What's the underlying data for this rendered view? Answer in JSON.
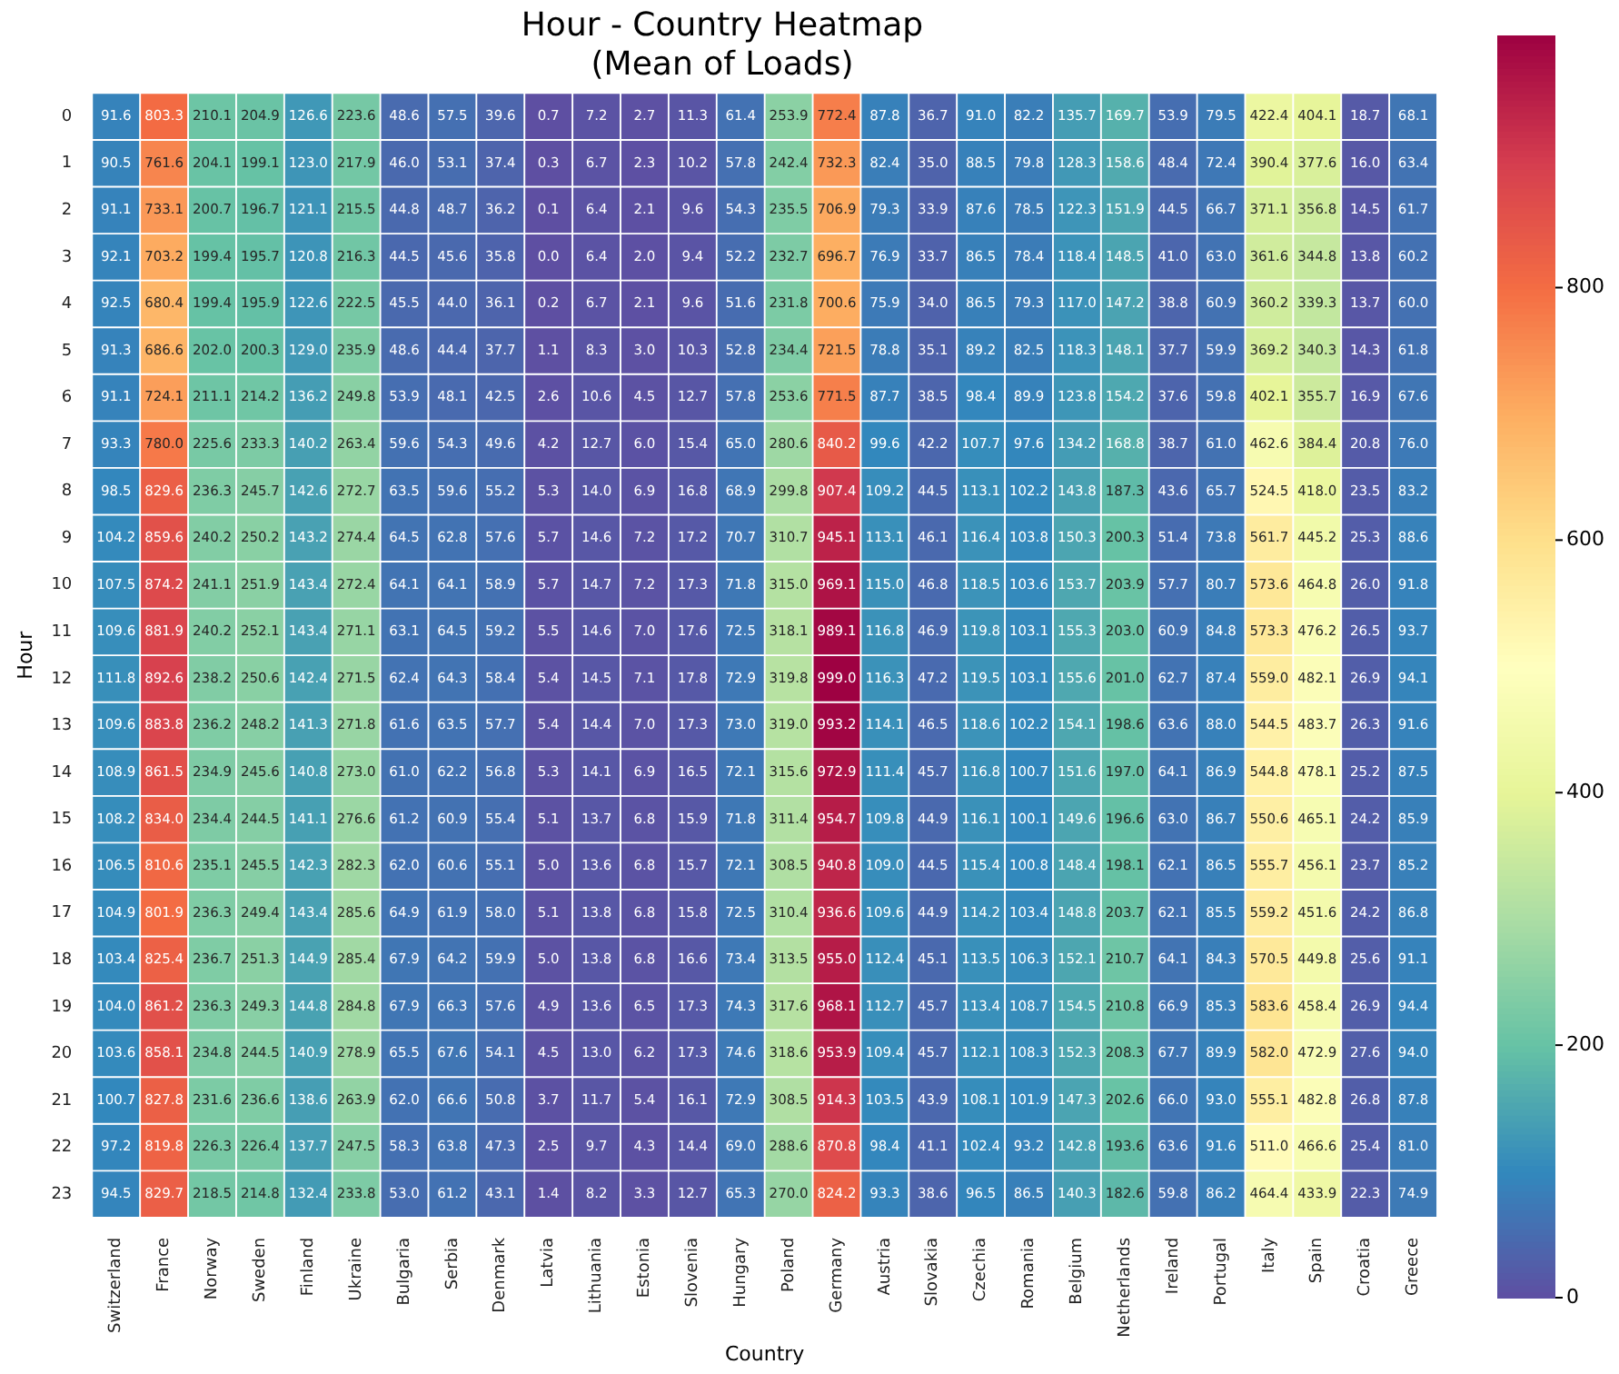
{
  "chart_data": {
    "type": "heatmap",
    "title": "Hour - Country Heatmap",
    "subtitle": "(Mean of Loads)",
    "xlabel": "Country",
    "ylabel": "Hour",
    "categories": [
      "Switzerland",
      "France",
      "Norway",
      "Sweden",
      "Finland",
      "Ukraine",
      "Bulgaria",
      "Serbia",
      "Denmark",
      "Latvia",
      "Lithuania",
      "Estonia",
      "Slovenia",
      "Hungary",
      "Poland",
      "Germany",
      "Austria",
      "Slovakia",
      "Czechia",
      "Romania",
      "Belgium",
      "Netherlands",
      "Ireland",
      "Portugal",
      "Italy",
      "Spain",
      "Croatia",
      "Greece"
    ],
    "y_categories": [
      "0",
      "1",
      "2",
      "3",
      "4",
      "5",
      "6",
      "7",
      "8",
      "9",
      "10",
      "11",
      "12",
      "13",
      "14",
      "15",
      "16",
      "17",
      "18",
      "19",
      "20",
      "21",
      "22",
      "23"
    ],
    "cells": [
      [
        91.6,
        803.3,
        210.1,
        204.9,
        126.6,
        223.6,
        48.6,
        57.5,
        39.6,
        0.7,
        7.2,
        2.7,
        11.3,
        61.4,
        253.9,
        772.4,
        87.8,
        36.7,
        91.0,
        82.2,
        135.7,
        169.7,
        53.9,
        79.5,
        422.4,
        404.1,
        18.7,
        68.1
      ],
      [
        90.5,
        761.6,
        204.1,
        199.1,
        123.0,
        217.9,
        46.0,
        53.1,
        37.4,
        0.3,
        6.7,
        2.3,
        10.2,
        57.8,
        242.4,
        732.3,
        82.4,
        35.0,
        88.5,
        79.8,
        128.3,
        158.6,
        48.4,
        72.4,
        390.4,
        377.6,
        16.0,
        63.4
      ],
      [
        91.1,
        733.1,
        200.7,
        196.7,
        121.1,
        215.5,
        44.8,
        48.7,
        36.2,
        0.1,
        6.4,
        2.1,
        9.6,
        54.3,
        235.5,
        706.9,
        79.3,
        33.9,
        87.6,
        78.5,
        122.3,
        151.9,
        44.5,
        66.7,
        371.1,
        356.8,
        14.5,
        61.7
      ],
      [
        92.1,
        703.2,
        199.4,
        195.7,
        120.8,
        216.3,
        44.5,
        45.6,
        35.8,
        0.0,
        6.4,
        2.0,
        9.4,
        52.2,
        232.7,
        696.7,
        76.9,
        33.7,
        86.5,
        78.4,
        118.4,
        148.5,
        41.0,
        63.0,
        361.6,
        344.8,
        13.8,
        60.2
      ],
      [
        92.5,
        680.4,
        199.4,
        195.9,
        122.6,
        222.5,
        45.5,
        44.0,
        36.1,
        0.2,
        6.7,
        2.1,
        9.6,
        51.6,
        231.8,
        700.6,
        75.9,
        34.0,
        86.5,
        79.3,
        117.0,
        147.2,
        38.8,
        60.9,
        360.2,
        339.3,
        13.7,
        60.0
      ],
      [
        91.3,
        686.6,
        202.0,
        200.3,
        129.0,
        235.9,
        48.6,
        44.4,
        37.7,
        1.1,
        8.3,
        3.0,
        10.3,
        52.8,
        234.4,
        721.5,
        78.8,
        35.1,
        89.2,
        82.5,
        118.3,
        148.1,
        37.7,
        59.9,
        369.2,
        340.3,
        14.3,
        61.8
      ],
      [
        91.1,
        724.1,
        211.1,
        214.2,
        136.2,
        249.8,
        53.9,
        48.1,
        42.5,
        2.6,
        10.6,
        4.5,
        12.7,
        57.8,
        253.6,
        771.5,
        87.7,
        38.5,
        98.4,
        89.9,
        123.8,
        154.2,
        37.6,
        59.8,
        402.1,
        355.7,
        16.9,
        67.6
      ],
      [
        93.3,
        780.0,
        225.6,
        233.3,
        140.2,
        263.4,
        59.6,
        54.3,
        49.6,
        4.2,
        12.7,
        6.0,
        15.4,
        65.0,
        280.6,
        840.2,
        99.6,
        42.2,
        107.7,
        97.6,
        134.2,
        168.8,
        38.7,
        61.0,
        462.6,
        384.4,
        20.8,
        76.0
      ],
      [
        98.5,
        829.6,
        236.3,
        245.7,
        142.6,
        272.7,
        63.5,
        59.6,
        55.2,
        5.3,
        14.0,
        6.9,
        16.8,
        68.9,
        299.8,
        907.4,
        109.2,
        44.5,
        113.1,
        102.2,
        143.8,
        187.3,
        43.6,
        65.7,
        524.5,
        418.0,
        23.5,
        83.2
      ],
      [
        104.2,
        859.6,
        240.2,
        250.2,
        143.2,
        274.4,
        64.5,
        62.8,
        57.6,
        5.7,
        14.6,
        7.2,
        17.2,
        70.7,
        310.7,
        945.1,
        113.1,
        46.1,
        116.4,
        103.8,
        150.3,
        200.3,
        51.4,
        73.8,
        561.7,
        445.2,
        25.3,
        88.6
      ],
      [
        107.5,
        874.2,
        241.1,
        251.9,
        143.4,
        272.4,
        64.1,
        64.1,
        58.9,
        5.7,
        14.7,
        7.2,
        17.3,
        71.8,
        315.0,
        969.1,
        115.0,
        46.8,
        118.5,
        103.6,
        153.7,
        203.9,
        57.7,
        80.7,
        573.6,
        464.8,
        26.0,
        91.8
      ],
      [
        109.6,
        881.9,
        240.2,
        252.1,
        143.4,
        271.1,
        63.1,
        64.5,
        59.2,
        5.5,
        14.6,
        7.0,
        17.6,
        72.5,
        318.1,
        989.1,
        116.8,
        46.9,
        119.8,
        103.1,
        155.3,
        203.0,
        60.9,
        84.8,
        573.3,
        476.2,
        26.5,
        93.7
      ],
      [
        111.8,
        892.6,
        238.2,
        250.6,
        142.4,
        271.5,
        62.4,
        64.3,
        58.4,
        5.4,
        14.5,
        7.1,
        17.8,
        72.9,
        319.8,
        999.0,
        116.3,
        47.2,
        119.5,
        103.1,
        155.6,
        201.0,
        62.7,
        87.4,
        559.0,
        482.1,
        26.9,
        94.1
      ],
      [
        109.6,
        883.8,
        236.2,
        248.2,
        141.3,
        271.8,
        61.6,
        63.5,
        57.7,
        5.4,
        14.4,
        7.0,
        17.3,
        73.0,
        319.0,
        993.2,
        114.1,
        46.5,
        118.6,
        102.2,
        154.1,
        198.6,
        63.6,
        88.0,
        544.5,
        483.7,
        26.3,
        91.6
      ],
      [
        108.9,
        861.5,
        234.9,
        245.6,
        140.8,
        273.0,
        61.0,
        62.2,
        56.8,
        5.3,
        14.1,
        6.9,
        16.5,
        72.1,
        315.6,
        972.9,
        111.4,
        45.7,
        116.8,
        100.7,
        151.6,
        197.0,
        64.1,
        86.9,
        544.8,
        478.1,
        25.2,
        87.5
      ],
      [
        108.2,
        834.0,
        234.4,
        244.5,
        141.1,
        276.6,
        61.2,
        60.9,
        55.4,
        5.1,
        13.7,
        6.8,
        15.9,
        71.8,
        311.4,
        954.7,
        109.8,
        44.9,
        116.1,
        100.1,
        149.6,
        196.6,
        63.0,
        86.7,
        550.6,
        465.1,
        24.2,
        85.9
      ],
      [
        106.5,
        810.6,
        235.1,
        245.5,
        142.3,
        282.3,
        62.0,
        60.6,
        55.1,
        5.0,
        13.6,
        6.8,
        15.7,
        72.1,
        308.5,
        940.8,
        109.0,
        44.5,
        115.4,
        100.8,
        148.4,
        198.1,
        62.1,
        86.5,
        555.7,
        456.1,
        23.7,
        85.2
      ],
      [
        104.9,
        801.9,
        236.3,
        249.4,
        143.4,
        285.6,
        64.9,
        61.9,
        58.0,
        5.1,
        13.8,
        6.8,
        15.8,
        72.5,
        310.4,
        936.6,
        109.6,
        44.9,
        114.2,
        103.4,
        148.8,
        203.7,
        62.1,
        85.5,
        559.2,
        451.6,
        24.2,
        86.8
      ],
      [
        103.4,
        825.4,
        236.7,
        251.3,
        144.9,
        285.4,
        67.9,
        64.2,
        59.9,
        5.0,
        13.8,
        6.8,
        16.6,
        73.4,
        313.5,
        955.0,
        112.4,
        45.1,
        113.5,
        106.3,
        152.1,
        210.7,
        64.1,
        84.3,
        570.5,
        449.8,
        25.6,
        91.1
      ],
      [
        104.0,
        861.2,
        236.3,
        249.3,
        144.8,
        284.8,
        67.9,
        66.3,
        57.6,
        4.9,
        13.6,
        6.5,
        17.3,
        74.3,
        317.6,
        968.1,
        112.7,
        45.7,
        113.4,
        108.7,
        154.5,
        210.8,
        66.9,
        85.3,
        583.6,
        458.4,
        26.9,
        94.4
      ],
      [
        103.6,
        858.1,
        234.8,
        244.5,
        140.9,
        278.9,
        65.5,
        67.6,
        54.1,
        4.5,
        13.0,
        6.2,
        17.3,
        74.6,
        318.6,
        953.9,
        109.4,
        45.7,
        112.1,
        108.3,
        152.3,
        208.3,
        67.7,
        89.9,
        582.0,
        472.9,
        27.6,
        94.0
      ],
      [
        100.7,
        827.8,
        231.6,
        236.6,
        138.6,
        263.9,
        62.0,
        66.6,
        50.8,
        3.7,
        11.7,
        5.4,
        16.1,
        72.9,
        308.5,
        914.3,
        103.5,
        43.9,
        108.1,
        101.9,
        147.3,
        202.6,
        66.0,
        93.0,
        555.1,
        482.8,
        26.8,
        87.8
      ],
      [
        97.2,
        819.8,
        226.3,
        226.4,
        137.7,
        247.5,
        58.3,
        63.8,
        47.3,
        2.5,
        9.7,
        4.3,
        14.4,
        69.0,
        288.6,
        870.8,
        98.4,
        41.1,
        102.4,
        93.2,
        142.8,
        193.6,
        63.6,
        91.6,
        511.0,
        466.6,
        25.4,
        81.0
      ],
      [
        94.5,
        829.7,
        218.5,
        214.8,
        132.4,
        233.8,
        53.0,
        61.2,
        43.1,
        1.4,
        8.2,
        3.3,
        12.7,
        65.3,
        270.0,
        824.2,
        93.3,
        38.6,
        96.5,
        86.5,
        140.3,
        182.6,
        59.8,
        86.2,
        464.4,
        433.9,
        22.3,
        74.9
      ]
    ],
    "cell_labels": [
      [
        "91.6",
        "803.3",
        "210.1",
        "204.9",
        "126.6",
        "223.6",
        "48.6",
        "57.5",
        "39.6",
        "0.7",
        "7.2",
        "2.7",
        "11.3",
        "61.4",
        "253.9",
        "772.4",
        "87.8",
        "36.7",
        "91.0",
        "82.2",
        "135.7",
        "169.7",
        "53.9",
        "79.5",
        "422.4",
        "404.1",
        "18.7",
        "68.1"
      ],
      [
        "90.5",
        "761.6",
        "204.1",
        "199.1",
        "123.0",
        "217.9",
        "46.0",
        "53.1",
        "37.4",
        "0.3",
        "6.7",
        "2.3",
        "10.2",
        "57.8",
        "242.4",
        "732.3",
        "82.4",
        "35.0",
        "88.5",
        "79.8",
        "128.3",
        "158.6",
        "48.4",
        "72.4",
        "390.4",
        "377.6",
        "16.0",
        "63.4"
      ],
      [
        "91.1",
        "733.1",
        "200.7",
        "196.7",
        "121.1",
        "215.5",
        "44.8",
        "48.7",
        "36.2",
        "0.1",
        "6.4",
        "2.1",
        "9.6",
        "54.3",
        "235.5",
        "706.9",
        "79.3",
        "33.9",
        "87.6",
        "78.5",
        "122.3",
        "151.9",
        "44.5",
        "66.7",
        "371.1",
        "356.8",
        "14.5",
        "61.7"
      ],
      [
        "92.1",
        "703.2",
        "199.4",
        "195.7",
        "120.8",
        "216.3",
        "44.5",
        "45.6",
        "35.8",
        "0.0",
        "6.4",
        "2.0",
        "9.4",
        "52.2",
        "232.7",
        "696.7",
        "76.9",
        "33.7",
        "86.5",
        "78.4",
        "118.4",
        "148.5",
        "41.0",
        "63.0",
        "361.6",
        "344.8",
        "13.8",
        "60.2"
      ],
      [
        "92.5",
        "680.4",
        "199.4",
        "195.9",
        "122.6",
        "222.5",
        "45.5",
        "44.0",
        "36.1",
        "0.2",
        "6.7",
        "2.1",
        "9.6",
        "51.6",
        "231.8",
        "700.6",
        "75.9",
        "34.0",
        "86.5",
        "79.3",
        "117.0",
        "147.2",
        "38.8",
        "60.9",
        "360.2",
        "339.3",
        "13.7",
        "60.0"
      ],
      [
        "91.3",
        "686.6",
        "202.0",
        "200.3",
        "129.0",
        "235.9",
        "48.6",
        "44.4",
        "37.7",
        "1.1",
        "8.3",
        "3.0",
        "10.3",
        "52.8",
        "234.4",
        "721.5",
        "78.8",
        "35.1",
        "89.2",
        "82.5",
        "118.3",
        "148.1",
        "37.7",
        "59.9",
        "369.2",
        "340.3",
        "14.3",
        "61.8"
      ],
      [
        "91.1",
        "724.1",
        "211.1",
        "214.2",
        "136.2",
        "249.8",
        "53.9",
        "48.1",
        "42.5",
        "2.6",
        "10.6",
        "4.5",
        "12.7",
        "57.8",
        "253.6",
        "771.5",
        "87.7",
        "38.5",
        "98.4",
        "89.9",
        "123.8",
        "154.2",
        "37.6",
        "59.8",
        "402.1",
        "355.7",
        "16.9",
        "67.6"
      ],
      [
        "93.3",
        "780.0",
        "225.6",
        "233.3",
        "140.2",
        "263.4",
        "59.6",
        "54.3",
        "49.6",
        "4.2",
        "12.7",
        "6.0",
        "15.4",
        "65.0",
        "280.6",
        "840.2",
        "99.6",
        "42.2",
        "107.7",
        "97.6",
        "134.2",
        "168.8",
        "38.7",
        "61.0",
        "462.6",
        "384.4",
        "20.8",
        "76.0"
      ],
      [
        "98.5",
        "829.6",
        "236.3",
        "245.7",
        "142.6",
        "272.7",
        "63.5",
        "59.6",
        "55.2",
        "5.3",
        "14.0",
        "6.9",
        "16.8",
        "68.9",
        "299.8",
        "907.4",
        "109.2",
        "44.5",
        "113.1",
        "102.2",
        "143.8",
        "187.3",
        "43.6",
        "65.7",
        "524.5",
        "418.0",
        "23.5",
        "83.2"
      ],
      [
        "104.2",
        "859.6",
        "240.2",
        "250.2",
        "143.2",
        "274.4",
        "64.5",
        "62.8",
        "57.6",
        "5.7",
        "14.6",
        "7.2",
        "17.2",
        "70.7",
        "310.7",
        "945.1",
        "113.1",
        "46.1",
        "116.4",
        "103.8",
        "150.3",
        "200.3",
        "51.4",
        "73.8",
        "561.7",
        "445.2",
        "25.3",
        "88.6"
      ],
      [
        "107.5",
        "874.2",
        "241.1",
        "251.9",
        "143.4",
        "272.4",
        "64.1",
        "64.1",
        "58.9",
        "5.7",
        "14.7",
        "7.2",
        "17.3",
        "71.8",
        "315.0",
        "969.1",
        "115.0",
        "46.8",
        "118.5",
        "103.6",
        "153.7",
        "203.9",
        "57.7",
        "80.7",
        "573.6",
        "464.8",
        "26.0",
        "91.8"
      ],
      [
        "109.6",
        "881.9",
        "240.2",
        "252.1",
        "143.4",
        "271.1",
        "63.1",
        "64.5",
        "59.2",
        "5.5",
        "14.6",
        "7.0",
        "17.6",
        "72.5",
        "318.1",
        "989.1",
        "116.8",
        "46.9",
        "119.8",
        "103.1",
        "155.3",
        "203.0",
        "60.9",
        "84.8",
        "573.3",
        "476.2",
        "26.5",
        "93.7"
      ],
      [
        "111.8",
        "892.6",
        "238.2",
        "250.6",
        "142.4",
        "271.5",
        "62.4",
        "64.3",
        "58.4",
        "5.4",
        "14.5",
        "7.1",
        "17.8",
        "72.9",
        "319.8",
        "999.0",
        "116.3",
        "47.2",
        "119.5",
        "103.1",
        "155.6",
        "201.0",
        "62.7",
        "87.4",
        "559.0",
        "482.1",
        "26.9",
        "94.1"
      ],
      [
        "109.6",
        "883.8",
        "236.2",
        "248.2",
        "141.3",
        "271.8",
        "61.6",
        "63.5",
        "57.7",
        "5.4",
        "14.4",
        "7.0",
        "17.3",
        "73.0",
        "319.0",
        "993.2",
        "114.1",
        "46.5",
        "118.6",
        "102.2",
        "154.1",
        "198.6",
        "63.6",
        "88.0",
        "544.5",
        "483.7",
        "26.3",
        "91.6"
      ],
      [
        "108.9",
        "861.5",
        "234.9",
        "245.6",
        "140.8",
        "273.0",
        "61.0",
        "62.2",
        "56.8",
        "5.3",
        "14.1",
        "6.9",
        "16.5",
        "72.1",
        "315.6",
        "972.9",
        "111.4",
        "45.7",
        "116.8",
        "100.7",
        "151.6",
        "197.0",
        "64.1",
        "86.9",
        "544.8",
        "478.1",
        "25.2",
        "87.5"
      ],
      [
        "108.2",
        "834.0",
        "234.4",
        "244.5",
        "141.1",
        "276.6",
        "61.2",
        "60.9",
        "55.4",
        "5.1",
        "13.7",
        "6.8",
        "15.9",
        "71.8",
        "311.4",
        "954.7",
        "109.8",
        "44.9",
        "116.1",
        "100.1",
        "149.6",
        "196.6",
        "63.0",
        "86.7",
        "550.6",
        "465.1",
        "24.2",
        "85.9"
      ],
      [
        "106.5",
        "810.6",
        "235.1",
        "245.5",
        "142.3",
        "282.3",
        "62.0",
        "60.6",
        "55.1",
        "5.0",
        "13.6",
        "6.8",
        "15.7",
        "72.1",
        "308.5",
        "940.8",
        "109.0",
        "44.5",
        "115.4",
        "100.8",
        "148.4",
        "198.1",
        "62.1",
        "86.5",
        "555.7",
        "456.1",
        "23.7",
        "85.2"
      ],
      [
        "104.9",
        "801.9",
        "236.3",
        "249.4",
        "143.4",
        "285.6",
        "64.9",
        "61.9",
        "58.0",
        "5.1",
        "13.8",
        "6.8",
        "15.8",
        "72.5",
        "310.4",
        "936.6",
        "109.6",
        "44.9",
        "114.2",
        "103.4",
        "148.8",
        "203.7",
        "62.1",
        "85.5",
        "559.2",
        "451.6",
        "24.2",
        "86.8"
      ],
      [
        "103.4",
        "825.4",
        "236.7",
        "251.3",
        "144.9",
        "285.4",
        "67.9",
        "64.2",
        "59.9",
        "5.0",
        "13.8",
        "6.8",
        "16.6",
        "73.4",
        "313.5",
        "955.0",
        "112.4",
        "45.1",
        "113.5",
        "106.3",
        "152.1",
        "210.7",
        "64.1",
        "84.3",
        "570.5",
        "449.8",
        "25.6",
        "91.1"
      ],
      [
        "104.0",
        "861.2",
        "236.3",
        "249.3",
        "144.8",
        "284.8",
        "67.9",
        "66.3",
        "57.6",
        "4.9",
        "13.6",
        "6.5",
        "17.3",
        "74.3",
        "317.6",
        "968.1",
        "112.7",
        "45.7",
        "113.4",
        "108.7",
        "154.5",
        "210.8",
        "66.9",
        "85.3",
        "583.6",
        "458.4",
        "26.9",
        "94.4"
      ],
      [
        "103.6",
        "858.1",
        "234.8",
        "244.5",
        "140.9",
        "278.9",
        "65.5",
        "67.6",
        "54.1",
        "4.5",
        "13.0",
        "6.2",
        "17.3",
        "74.6",
        "318.6",
        "953.9",
        "109.4",
        "45.7",
        "112.1",
        "108.3",
        "152.3",
        "208.3",
        "67.7",
        "89.9",
        "582.0",
        "472.9",
        "27.6",
        "94.0"
      ],
      [
        "100.7",
        "827.8",
        "231.6",
        "236.6",
        "138.6",
        "263.9",
        "62.0",
        "66.6",
        "50.8",
        "3.7",
        "11.7",
        "5.4",
        "16.1",
        "72.9",
        "308.5",
        "914.3",
        "103.5",
        "43.9",
        "108.1",
        "101.9",
        "147.3",
        "202.6",
        "66.0",
        "93.0",
        "555.1",
        "482.8",
        "26.8",
        "87.8"
      ],
      [
        "97.2",
        "819.8",
        "226.3",
        "226.4",
        "137.7",
        "247.5",
        "58.3",
        "63.8",
        "47.3",
        "2.5",
        "9.7",
        "4.3",
        "14.4",
        "69.0",
        "288.6",
        "870.8",
        "98.4",
        "41.1",
        "102.4",
        "93.2",
        "142.8",
        "193.6",
        "63.6",
        "91.6",
        "511.0",
        "466.6",
        "25.4",
        "81.0"
      ],
      [
        "94.5",
        "829.7",
        "218.5",
        "214.8",
        "132.4",
        "233.8",
        "53.0",
        "61.2",
        "43.1",
        "1.4",
        "8.2",
        "3.3",
        "12.7",
        "65.3",
        "270.0",
        "824.2",
        "93.3",
        "38.6",
        "96.5",
        "86.5",
        "140.3",
        "182.6",
        "59.8",
        "86.2",
        "464.4",
        "433.9",
        "22.3",
        "74.9"
      ]
    ],
    "clim": [
      0,
      999.0
    ],
    "cticks": [
      0,
      200,
      400,
      600,
      800
    ],
    "data_labels": true
  }
}
